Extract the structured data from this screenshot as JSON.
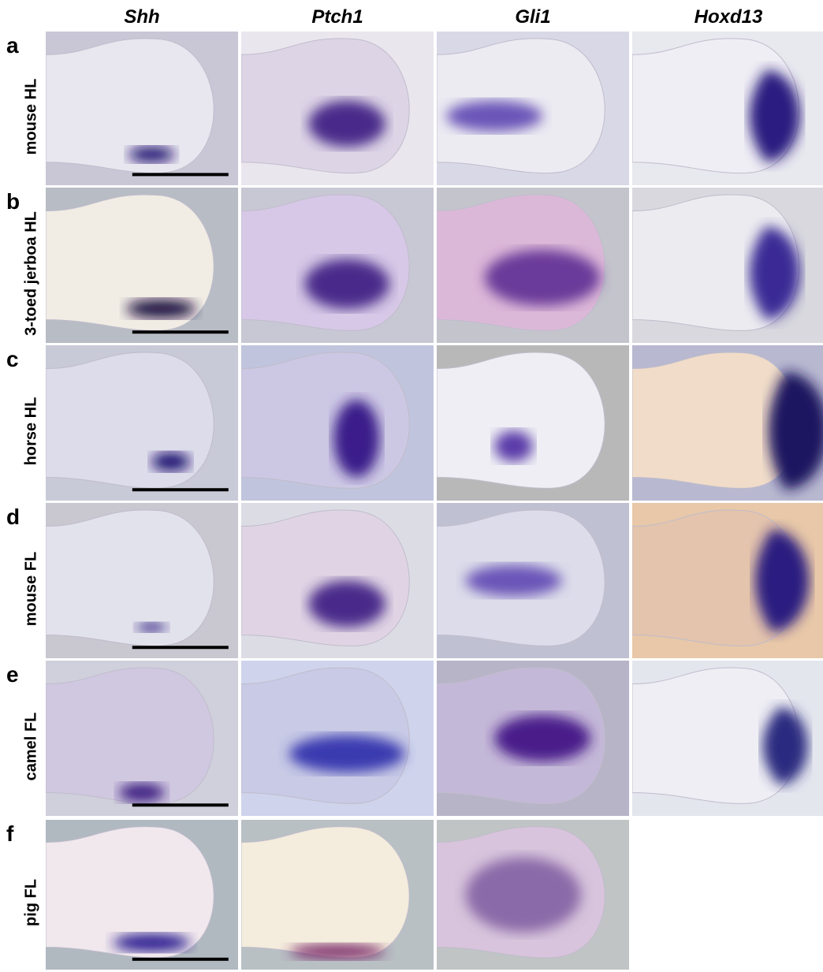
{
  "columns": [
    "Shh",
    "Ptch1",
    "Gli1",
    "Hoxd13"
  ],
  "rows": [
    {
      "letter": "a",
      "label": "mouse HL"
    },
    {
      "letter": "b",
      "label": "3-toed jerboa HL"
    },
    {
      "letter": "c",
      "label": "horse HL"
    },
    {
      "letter": "d",
      "label": "mouse FL"
    },
    {
      "letter": "e",
      "label": "camel FL"
    },
    {
      "letter": "f",
      "label": "pig FL"
    }
  ]
}
